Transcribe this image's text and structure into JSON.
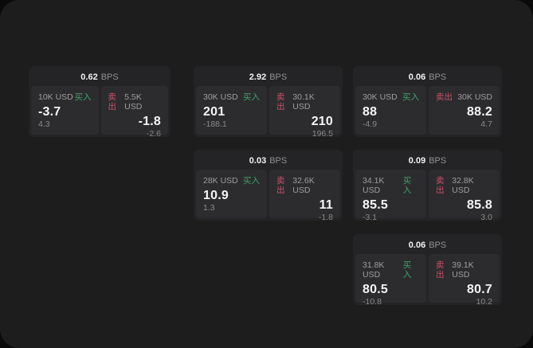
{
  "theme": {
    "outer_bg": "#0a0a0a",
    "container_bg": "#1d1d1d",
    "card_bg": "#242426",
    "panel_bg": "#2c2c2e",
    "buy_color": "#3fa26b",
    "sell_color": "#cf4f68",
    "value_color": "#f5f5f5",
    "label_color": "#9e9e9e",
    "sub_color": "#898989"
  },
  "labels": {
    "bps": "BPS",
    "buy": "买入",
    "sell": "卖出"
  },
  "cards": [
    {
      "grid": {
        "row": 1,
        "col": 1
      },
      "bps": "0.62",
      "buy": {
        "size": "10K USD",
        "price": "-3.7",
        "sub": "4.3"
      },
      "sell": {
        "size": "5.5K USD",
        "price": "-1.8",
        "sub": "-2.6"
      }
    },
    {
      "grid": {
        "row": 1,
        "col": 2
      },
      "bps": "2.92",
      "buy": {
        "size": "30K USD",
        "price": "201",
        "sub": "-188.1"
      },
      "sell": {
        "size": "30.1K USD",
        "price": "210",
        "sub": "196.5"
      }
    },
    {
      "grid": {
        "row": 1,
        "col": 3
      },
      "bps": "0.06",
      "buy": {
        "size": "30K USD",
        "price": "88",
        "sub": "-4.9"
      },
      "sell": {
        "size": "30K USD",
        "price": "88.2",
        "sub": "4.7"
      }
    },
    {
      "grid": {
        "row": 2,
        "col": 2
      },
      "bps": "0.03",
      "buy": {
        "size": "28K USD",
        "price": "10.9",
        "sub": "1.3"
      },
      "sell": {
        "size": "32.6K USD",
        "price": "11",
        "sub": "-1.8"
      }
    },
    {
      "grid": {
        "row": 2,
        "col": 3
      },
      "bps": "0.09",
      "buy": {
        "size": "34.1K USD",
        "price": "85.5",
        "sub": "-3.1"
      },
      "sell": {
        "size": "32.8K USD",
        "price": "85.8",
        "sub": "3.0"
      }
    },
    {
      "grid": {
        "row": 3,
        "col": 3
      },
      "bps": "0.06",
      "buy": {
        "size": "31.8K USD",
        "price": "80.5",
        "sub": "-10.8"
      },
      "sell": {
        "size": "39.1K USD",
        "price": "80.7",
        "sub": "10.2"
      }
    }
  ]
}
